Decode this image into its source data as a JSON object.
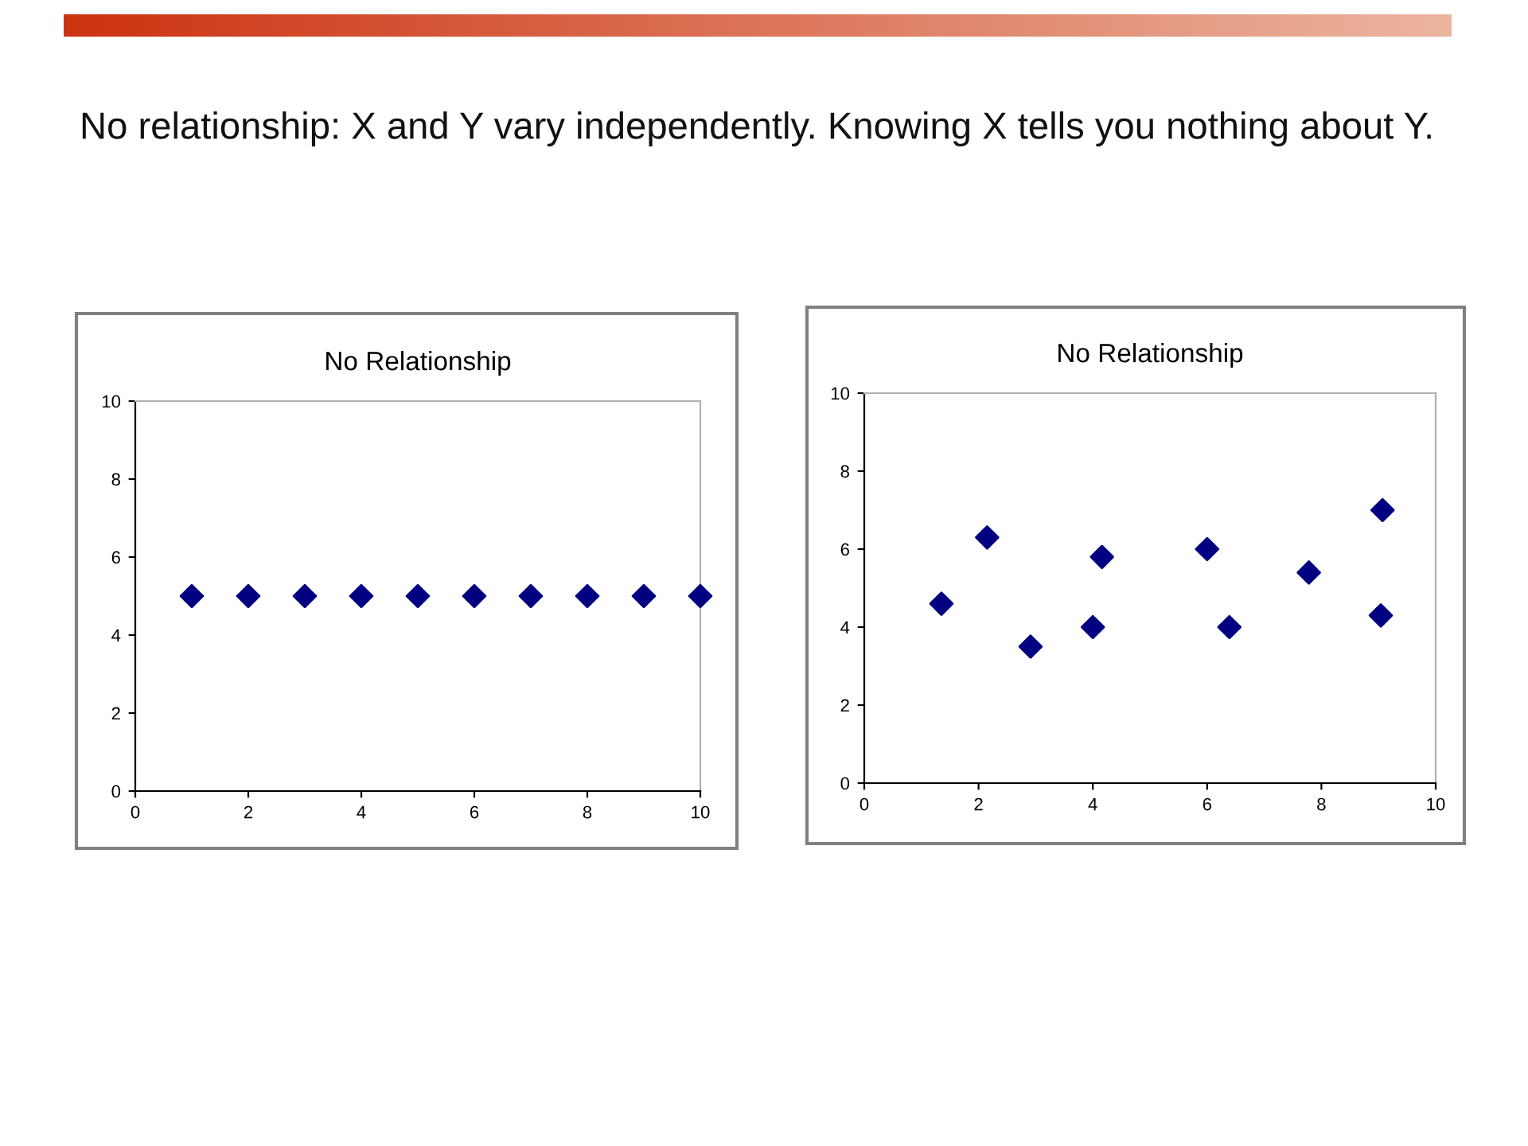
{
  "chart_data": [
    {
      "type": "scatter",
      "title": "No Relationship",
      "annotations": [
        "No relationship: X and Y vary independently. Knowing X tells you nothing about Y."
      ],
      "x": [
        1,
        2,
        3,
        4,
        5,
        6,
        7,
        8,
        9,
        10
      ],
      "values": [
        5,
        5,
        5,
        5,
        5,
        5,
        5,
        5,
        5,
        5
      ],
      "color": "#000080",
      "marker": "diamond",
      "xlim": [
        0,
        10
      ],
      "ylim": [
        0,
        10
      ],
      "xticks": [
        0,
        2,
        4,
        6,
        8,
        10
      ],
      "yticks": [
        0,
        2,
        4,
        6,
        8,
        10
      ],
      "grid": false
    },
    {
      "type": "scatter",
      "title": "No Relationship",
      "x": [
        1.35,
        2.15,
        2.91,
        4.0,
        4.16,
        6.0,
        6.39,
        7.78,
        9.07,
        9.04
      ],
      "values": [
        4.6,
        6.3,
        3.5,
        4.0,
        5.8,
        6.0,
        4.0,
        5.4,
        7.0,
        4.3
      ],
      "color": "#000080",
      "marker": "diamond",
      "xlim": [
        0,
        10
      ],
      "ylim": [
        0,
        10
      ],
      "xticks": [
        0,
        2,
        4,
        6,
        8,
        10
      ],
      "yticks": [
        0,
        2,
        4,
        6,
        8,
        10
      ],
      "grid": false
    }
  ]
}
